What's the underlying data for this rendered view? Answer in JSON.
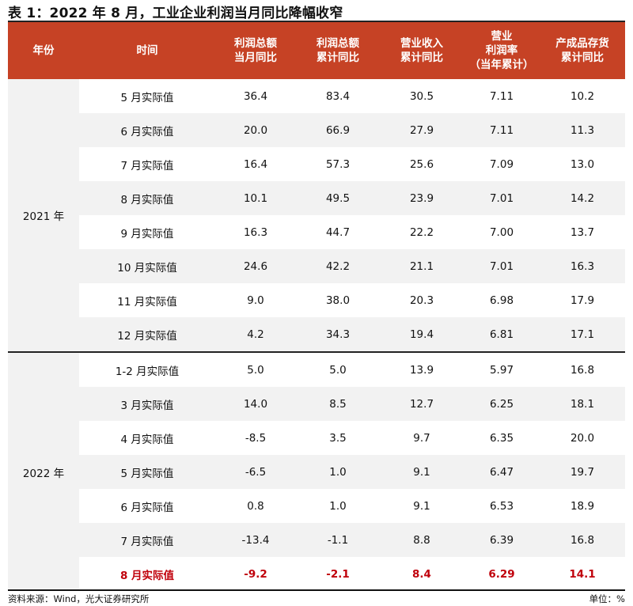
{
  "title": "表 1：2022 年 8 月，工业企业利润当月同比降幅收窄",
  "colors": {
    "header_bg": "#c64225",
    "header_text": "#ffffff",
    "alt_row_bg": "#f2f2f2",
    "highlight_text": "#c0000b"
  },
  "table": {
    "headers": [
      {
        "lines": [
          "年份"
        ]
      },
      {
        "lines": [
          "时间"
        ]
      },
      {
        "lines": [
          "利润总额",
          "当月同比"
        ]
      },
      {
        "lines": [
          "利润总额",
          "累计同比"
        ]
      },
      {
        "lines": [
          "营业收入",
          "累计同比"
        ]
      },
      {
        "lines": [
          "营业",
          "利润率",
          "（当年累计）"
        ]
      },
      {
        "lines": [
          "产成品存货",
          "累计同比"
        ]
      }
    ],
    "groups": [
      {
        "year": "2021 年",
        "rows": [
          {
            "period": "5 月实际值",
            "values": [
              "36.4",
              "83.4",
              "30.5",
              "7.11",
              "10.2"
            ]
          },
          {
            "period": "6 月实际值",
            "values": [
              "20.0",
              "66.9",
              "27.9",
              "7.11",
              "11.3"
            ]
          },
          {
            "period": "7 月实际值",
            "values": [
              "16.4",
              "57.3",
              "25.6",
              "7.09",
              "13.0"
            ]
          },
          {
            "period": "8 月实际值",
            "values": [
              "10.1",
              "49.5",
              "23.9",
              "7.01",
              "14.2"
            ]
          },
          {
            "period": "9 月实际值",
            "values": [
              "16.3",
              "44.7",
              "22.2",
              "7.00",
              "13.7"
            ]
          },
          {
            "period": "10 月实际值",
            "values": [
              "24.6",
              "42.2",
              "21.1",
              "7.01",
              "16.3"
            ]
          },
          {
            "period": "11 月实际值",
            "values": [
              "9.0",
              "38.0",
              "20.3",
              "6.98",
              "17.9"
            ]
          },
          {
            "period": "12 月实际值",
            "values": [
              "4.2",
              "34.3",
              "19.4",
              "6.81",
              "17.1"
            ]
          }
        ]
      },
      {
        "year": "2022 年",
        "rows": [
          {
            "period": "1-2 月实际值",
            "values": [
              "5.0",
              "5.0",
              "13.9",
              "5.97",
              "16.8"
            ]
          },
          {
            "period": "3 月实际值",
            "values": [
              "14.0",
              "8.5",
              "12.7",
              "6.25",
              "18.1"
            ]
          },
          {
            "period": "4 月实际值",
            "values": [
              "-8.5",
              "3.5",
              "9.7",
              "6.35",
              "20.0"
            ]
          },
          {
            "period": "5 月实际值",
            "values": [
              "-6.5",
              "1.0",
              "9.1",
              "6.47",
              "19.7"
            ]
          },
          {
            "period": "6 月实际值",
            "values": [
              "0.8",
              "1.0",
              "9.1",
              "6.53",
              "18.9"
            ]
          },
          {
            "period": "7 月实际值",
            "values": [
              "-13.4",
              "-1.1",
              "8.8",
              "6.39",
              "16.8"
            ]
          },
          {
            "period": "8 月实际值",
            "values": [
              "-9.2",
              "-2.1",
              "8.4",
              "6.29",
              "14.1"
            ],
            "highlight": true
          }
        ]
      }
    ]
  },
  "footer": {
    "source": "资料来源：Wind，光大证券研究所",
    "unit": "单位：%"
  }
}
